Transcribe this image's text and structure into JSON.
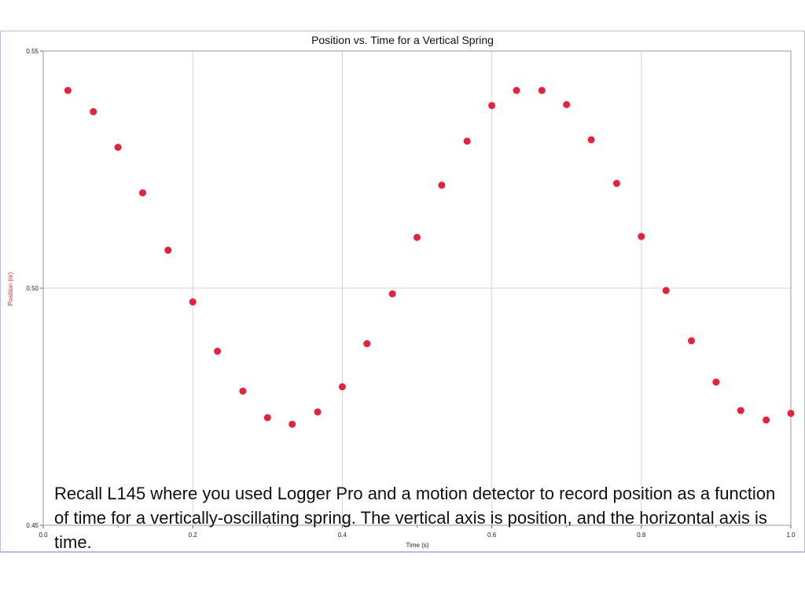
{
  "chart_data": {
    "type": "scatter",
    "title": "Position vs. Time for a Vertical Spring",
    "xlabel": "Time (s)",
    "ylabel": "Position (m)",
    "xlim": [
      0.0,
      1.0
    ],
    "ylim": [
      0.45,
      0.55
    ],
    "x_ticks": [
      "0.0",
      "0.2",
      "0.4",
      "0.6",
      "0.8",
      "1.0"
    ],
    "y_ticks": [
      "0.45",
      "0.50",
      "0.55"
    ],
    "grid": true,
    "series": [
      {
        "color": "#e8203a",
        "points": [
          [
            0.033,
            0.5417
          ],
          [
            0.067,
            0.5372
          ],
          [
            0.1,
            0.5297
          ],
          [
            0.133,
            0.5201
          ],
          [
            0.167,
            0.508
          ],
          [
            0.2,
            0.4971
          ],
          [
            0.233,
            0.4867
          ],
          [
            0.267,
            0.4783
          ],
          [
            0.3,
            0.4727
          ],
          [
            0.333,
            0.4713
          ],
          [
            0.367,
            0.4739
          ],
          [
            0.4,
            0.4792
          ],
          [
            0.433,
            0.4883
          ],
          [
            0.467,
            0.4988
          ],
          [
            0.5,
            0.5107
          ],
          [
            0.533,
            0.5217
          ],
          [
            0.567,
            0.531
          ],
          [
            0.6,
            0.5385
          ],
          [
            0.633,
            0.5417
          ],
          [
            0.667,
            0.5417
          ],
          [
            0.7,
            0.5387
          ],
          [
            0.733,
            0.5313
          ],
          [
            0.767,
            0.5221
          ],
          [
            0.8,
            0.5109
          ],
          [
            0.833,
            0.4995
          ],
          [
            0.867,
            0.4889
          ],
          [
            0.9,
            0.4802
          ],
          [
            0.933,
            0.4742
          ],
          [
            0.967,
            0.4722
          ],
          [
            1.0,
            0.4736
          ]
        ]
      }
    ]
  },
  "colors": {
    "marker": "#e8203a",
    "ylabel": "#e8203a",
    "grid": "#d4d4d4",
    "frame": "#b8bce6"
  },
  "caption": "Recall L145 where you used Logger Pro and a motion detector to record position as a function of time for a vertically-oscillating spring. The vertical axis is position, and the horizontal axis is time."
}
